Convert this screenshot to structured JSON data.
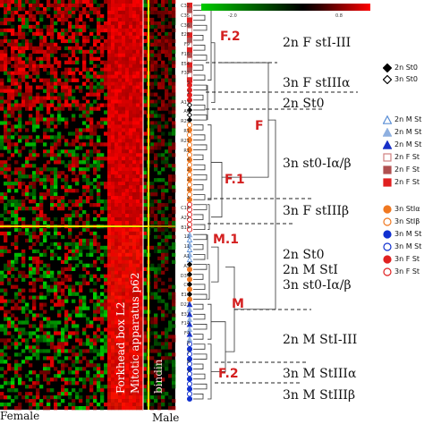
{
  "heatmap": {
    "row_groups": [
      "top",
      "bottom"
    ],
    "column_labels": [
      "Mitotic apparatus p62",
      "Forkhead box L2",
      "bindin"
    ],
    "axis": {
      "female": "Female",
      "male": "Male"
    }
  },
  "color_scale": {
    "min_label": "-2.0",
    "max_label": "0.8",
    "low_color": "#00cc00",
    "high_color": "#ff0000",
    "mid_color": "#000000"
  },
  "groups": [
    {
      "id": "F.2",
      "label": "F.2"
    },
    {
      "id": "F",
      "label": "F"
    },
    {
      "id": "F.1",
      "label": "F.1"
    },
    {
      "id": "M.1",
      "label": "M.1"
    },
    {
      "id": "M",
      "label": "M"
    },
    {
      "id": "F.2b",
      "label": "F.2"
    }
  ],
  "descriptions": [
    {
      "text": "2n F stI-III"
    },
    {
      "text": "3n F stIIIα"
    },
    {
      "text": "2n St0"
    },
    {
      "text": "3n st0-Iα/β"
    },
    {
      "text": "3n F stIIIβ"
    },
    {
      "text": "2n St0\n2n M StI\n3n st0-Iα/β"
    },
    {
      "text": "2n M StI-III"
    },
    {
      "text": "3n M StIIIα"
    },
    {
      "text": "3n M StIIIβ"
    }
  ],
  "leaf_labels": [
    "C32",
    "C35",
    "C36",
    "E28",
    "F9",
    "F16",
    "E54",
    "F32",
    "3",
    "1",
    "A17",
    "A6",
    "R29",
    "R1",
    "R21",
    "R1",
    "4",
    "2",
    "2",
    "3",
    "4",
    "C16",
    "A22",
    "B14",
    "12",
    "11",
    "A1",
    "A3",
    "D34",
    "C1",
    "E11",
    "D21",
    "E31",
    "F14",
    "F4",
    "8",
    "7",
    "8",
    "7"
  ],
  "legend": [
    {
      "symbol": "diamond-filled",
      "color": "#000000",
      "label": "2n St0"
    },
    {
      "symbol": "diamond-open",
      "color": "#000000",
      "label": "3n St0"
    },
    {
      "symbol": "triangle-open",
      "color": "#5b8fd6",
      "label": "2n M St"
    },
    {
      "symbol": "triangle-filled",
      "color": "#8fb0e0",
      "label": "2n M St"
    },
    {
      "symbol": "triangle-filled",
      "color": "#1830c8",
      "label": "2n M St"
    },
    {
      "symbol": "square-open",
      "color": "#d08080",
      "label": "2n F St"
    },
    {
      "symbol": "square-filled",
      "color": "#b05050",
      "label": "2n F St"
    },
    {
      "symbol": "square-filled",
      "color": "#e02020",
      "label": "2n F St"
    },
    {
      "symbol": "circle-filled",
      "color": "#f07820",
      "label": "3n StIα"
    },
    {
      "symbol": "circle-open",
      "color": "#f07820",
      "label": "3n StIβ"
    },
    {
      "symbol": "circle-filled",
      "color": "#1030d0",
      "label": "3n M St"
    },
    {
      "symbol": "circle-open",
      "color": "#1030d0",
      "label": "3n M St"
    },
    {
      "symbol": "circle-filled",
      "color": "#e02020",
      "label": "3n F St"
    },
    {
      "symbol": "circle-open",
      "color": "#e02020",
      "label": "3n F St"
    }
  ]
}
